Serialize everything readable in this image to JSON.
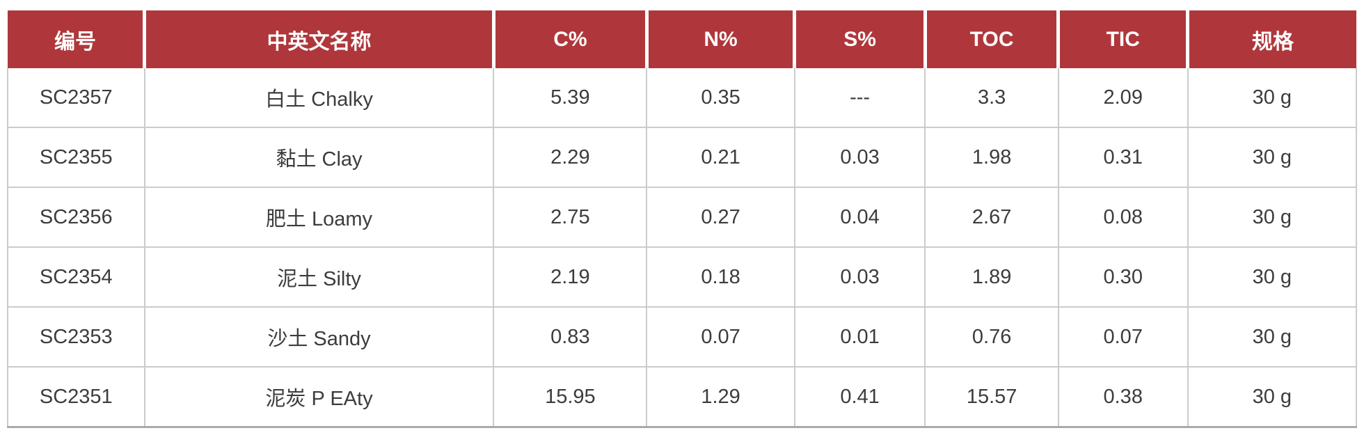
{
  "table": {
    "columns": [
      {
        "key": "id",
        "label": "编号"
      },
      {
        "key": "name",
        "label": "中英文名称"
      },
      {
        "key": "c-percent",
        "label": "C%"
      },
      {
        "key": "n-percent",
        "label": "N%"
      },
      {
        "key": "s-percent",
        "label": "S%"
      },
      {
        "key": "toc",
        "label": "TOC"
      },
      {
        "key": "tic",
        "label": "TIC"
      },
      {
        "key": "spec",
        "label": "规格"
      }
    ],
    "column_widths_percent": [
      10.2,
      26.1,
      11.3,
      10.9,
      9.6,
      9.8,
      9.5,
      12.6
    ],
    "rows": [
      [
        "SC2357",
        "白土 Chalky",
        "5.39",
        "0.35",
        "---",
        "3.3",
        "2.09",
        "30 g"
      ],
      [
        "SC2355",
        "黏土 Clay",
        "2.29",
        "0.21",
        "0.03",
        "1.98",
        "0.31",
        "30 g"
      ],
      [
        "SC2356",
        "肥土 Loamy",
        "2.75",
        "0.27",
        "0.04",
        "2.67",
        "0.08",
        "30 g"
      ],
      [
        "SC2354",
        "泥土 Silty",
        "2.19",
        "0.18",
        "0.03",
        "1.89",
        "0.30",
        "30 g"
      ],
      [
        "SC2353",
        "沙土 Sandy",
        "0.83",
        "0.07",
        "0.01",
        "0.76",
        "0.07",
        "30 g"
      ],
      [
        "SC2351",
        "泥炭 P EAty",
        "15.95",
        "1.29",
        "0.41",
        "15.57",
        "0.38",
        "30 g"
      ]
    ]
  },
  "colors": {
    "header_background": "#af373b",
    "header_text": "#ffffff",
    "body_text": "#3c3c3c",
    "grid_line": "#cbcbcb",
    "bottom_border": "#aaaaaa"
  }
}
